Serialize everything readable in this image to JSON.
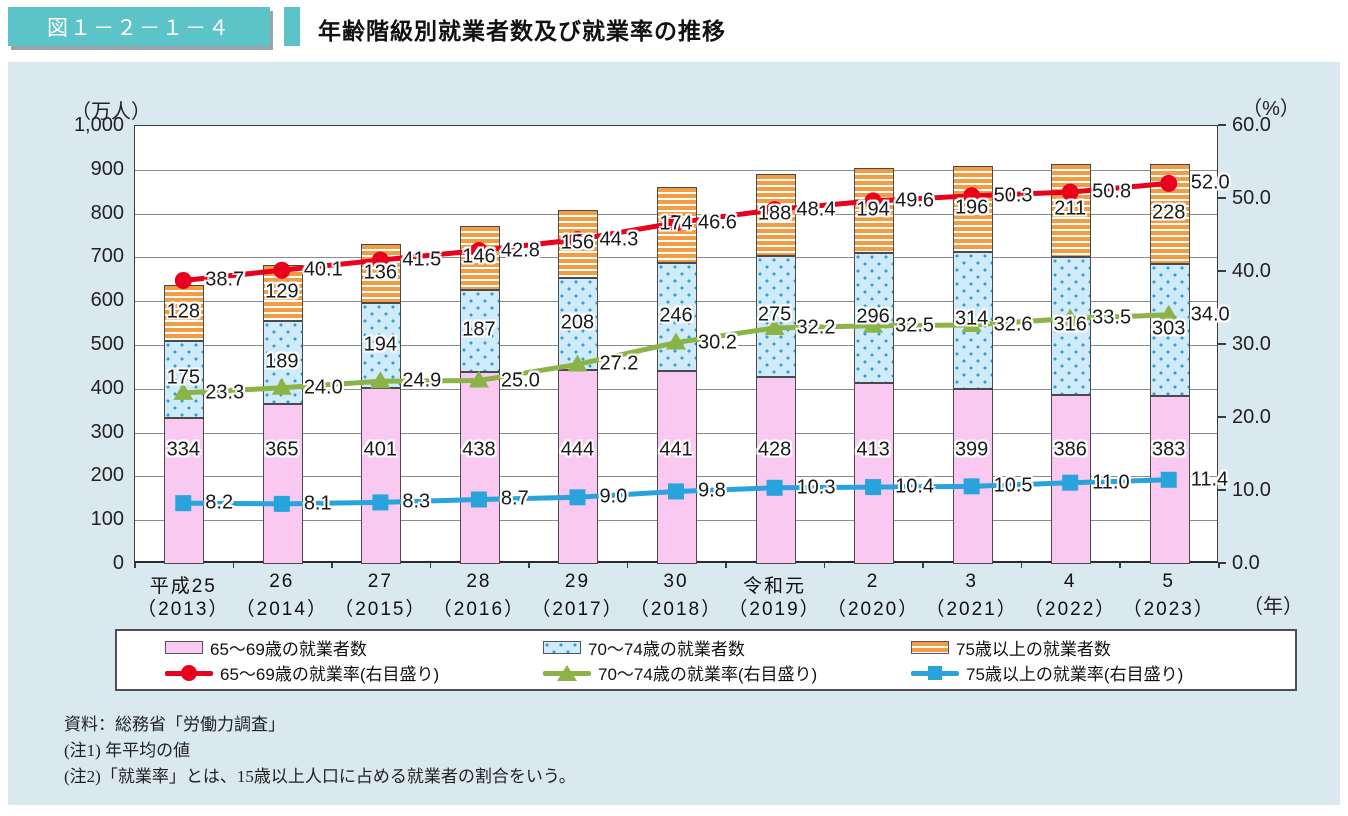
{
  "header": {
    "figure_label": "図１－２－１－４",
    "title": "年齢階級別就業者数及び就業率の推移"
  },
  "chart": {
    "left_axis_title": "（万人）",
    "right_axis_title": "（%）",
    "x_axis_unit": "（年）",
    "left_ticks": [
      "1,000",
      "900",
      "800",
      "700",
      "600",
      "500",
      "400",
      "300",
      "200",
      "100",
      "0"
    ],
    "right_ticks": [
      "60.0",
      "50.0",
      "40.0",
      "30.0",
      "20.0",
      "10.0",
      "0.0"
    ]
  },
  "chart_data": {
    "type": "combo-stacked-bar-line",
    "categories_line1": [
      "平成25",
      "26",
      "27",
      "28",
      "29",
      "30",
      "令和元",
      "2",
      "3",
      "4",
      "5"
    ],
    "categories_line2": [
      "（2013）",
      "（2014）",
      "（2015）",
      "（2016）",
      "（2017）",
      "（2018）",
      "（2019）",
      "（2020）",
      "（2021）",
      "（2022）",
      "（2023）"
    ],
    "left_ylim": [
      0,
      1000
    ],
    "right_ylim": [
      0,
      60
    ],
    "grid": "horizontal",
    "series": [
      {
        "name": "65～69歳の就業者数",
        "type": "bar",
        "axis": "left",
        "values": [
          334,
          365,
          401,
          438,
          444,
          441,
          428,
          413,
          399,
          386,
          383
        ]
      },
      {
        "name": "70～74歳の就業者数",
        "type": "bar",
        "axis": "left",
        "values": [
          175,
          189,
          194,
          187,
          208,
          246,
          275,
          296,
          314,
          316,
          303
        ]
      },
      {
        "name": "75歳以上の就業者数",
        "type": "bar",
        "axis": "left",
        "values": [
          128,
          129,
          136,
          146,
          156,
          174,
          188,
          194,
          196,
          211,
          228
        ]
      },
      {
        "name": "65～69歳の就業率(右目盛り)",
        "type": "line",
        "axis": "right",
        "marker": "circle",
        "values": [
          38.7,
          40.1,
          41.5,
          42.8,
          44.3,
          46.6,
          48.4,
          49.6,
          50.3,
          50.8,
          52.0
        ]
      },
      {
        "name": "70～74歳の就業率(右目盛り)",
        "type": "line",
        "axis": "right",
        "marker": "triangle",
        "values": [
          23.3,
          24.0,
          24.9,
          25.0,
          27.2,
          30.2,
          32.2,
          32.5,
          32.6,
          33.5,
          34.0
        ]
      },
      {
        "name": "75歳以上の就業率(右目盛り)",
        "type": "line",
        "axis": "right",
        "marker": "square",
        "values": [
          8.2,
          8.1,
          8.3,
          8.7,
          9.0,
          9.8,
          10.3,
          10.4,
          10.5,
          11.0,
          11.4
        ]
      }
    ]
  },
  "legend": {
    "items": [
      {
        "swatch": "bar-pink",
        "label": "65～69歳の就業者数"
      },
      {
        "swatch": "bar-dots",
        "label": "70～74歳の就業者数"
      },
      {
        "swatch": "bar-stripes",
        "label": "75歳以上の就業者数"
      },
      {
        "swatch": "line-circle",
        "label": "65～69歳の就業率(右目盛り)"
      },
      {
        "swatch": "line-triangle",
        "label": "70～74歳の就業率(右目盛り)"
      },
      {
        "swatch": "line-square",
        "label": "75歳以上の就業率(右目盛り)"
      }
    ]
  },
  "footer": {
    "source": "資料：総務省「労働力調査」",
    "note1": "(注1) 年平均の値",
    "note2": "(注2)「就業率」とは、15歳以上人口に占める就業者の割合をいう。"
  },
  "colors": {
    "accent_teal": "#5cc3c9",
    "panel_bg": "#d9e9ef",
    "bar_65_69": "#f9c9f1",
    "bar_70_74": "#cfeaf8",
    "bar_70_74_dot": "#2f9fd0",
    "bar_75_over": "#f49c42",
    "line_65_69": "#e8001c",
    "line_70_74": "#8cb347",
    "line_75_over": "#29a3dc"
  }
}
